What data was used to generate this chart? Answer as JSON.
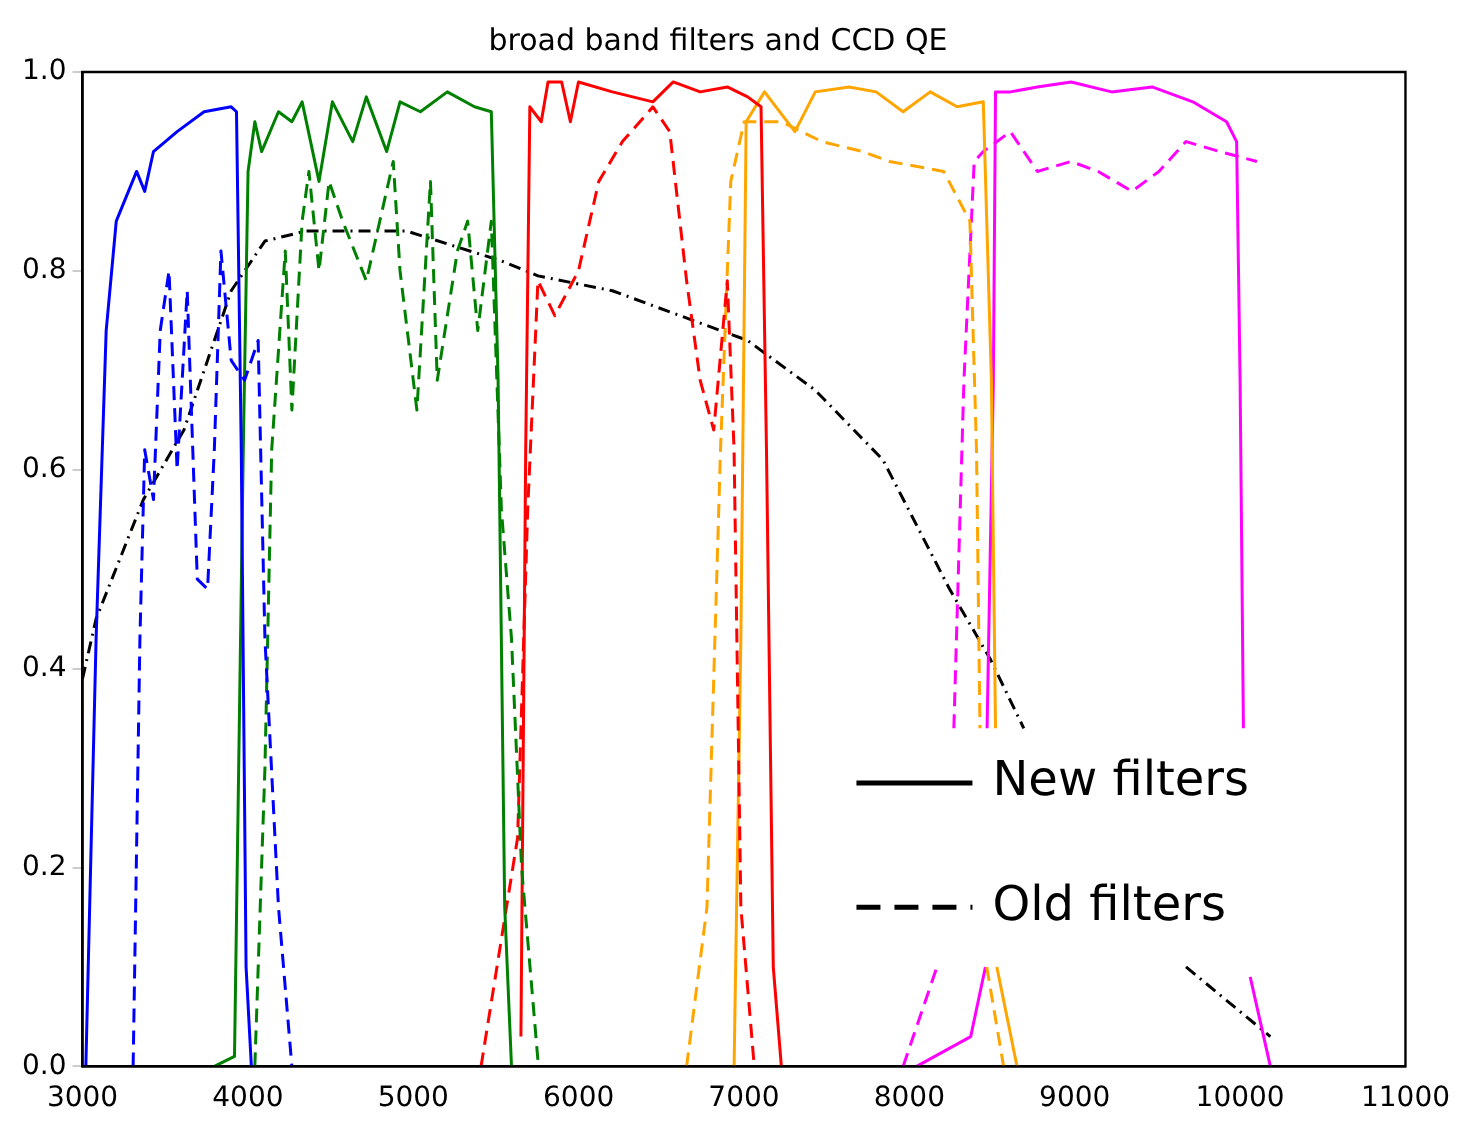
{
  "chart_data": {
    "type": "line",
    "title": "broad band filters and CCD QE",
    "xlim": [
      3000,
      11000
    ],
    "xticks": [
      3000,
      4000,
      5000,
      6000,
      7000,
      8000,
      9000,
      10000,
      11000
    ],
    "ylim": [
      0,
      1
    ],
    "yticks": [
      {
        "value": 0,
        "label": "0.0"
      },
      {
        "value": 0.2,
        "label": "0.2"
      },
      {
        "value": 0.4,
        "label": "0.4"
      },
      {
        "value": 0.6,
        "label": "0.6"
      },
      {
        "value": 0.8,
        "label": "0.8"
      },
      {
        "value": 1,
        "label": "1.0"
      }
    ],
    "grid": false,
    "annotations": [
      "New filters",
      "Old filters"
    ],
    "series": [
      {
        "color": "#0000ff",
        "line_style": "solid",
        "x": [
          3020,
          3082,
          3143,
          3204,
          3327,
          3376,
          3429,
          3572,
          3735,
          3899,
          3931,
          3960,
          3989,
          4021
        ],
        "values": [
          0,
          0.43,
          0.74,
          0.85,
          0.9,
          0.88,
          0.92,
          0.94,
          0.96,
          0.965,
          0.96,
          0.62,
          0.1,
          0
        ]
      },
      {
        "color": "#0000ff",
        "line_style": "dashed",
        "x": [
          3306,
          3347,
          3376,
          3429,
          3470,
          3523,
          3572,
          3633,
          3694,
          3756,
          3797,
          3837,
          3899,
          3980,
          4062,
          4103,
          4185,
          4266
        ],
        "values": [
          0,
          0.43,
          0.62,
          0.57,
          0.74,
          0.8,
          0.6,
          0.78,
          0.49,
          0.48,
          0.62,
          0.82,
          0.71,
          0.69,
          0.73,
          0.43,
          0.16,
          0
        ]
      },
      {
        "color": "#008000",
        "line_style": "solid",
        "x": [
          3797,
          3919,
          3972,
          4001,
          4042,
          4083,
          4185,
          4266,
          4328,
          4430,
          4511,
          4634,
          4716,
          4839,
          4920,
          5043,
          5206,
          5370,
          5472,
          5513,
          5553,
          5594
        ],
        "values": [
          0,
          0.01,
          0.62,
          0.9,
          0.95,
          0.92,
          0.96,
          0.95,
          0.97,
          0.89,
          0.97,
          0.93,
          0.975,
          0.92,
          0.97,
          0.96,
          0.98,
          0.965,
          0.96,
          0.69,
          0.16,
          0
        ]
      },
      {
        "color": "#008000",
        "line_style": "dashed",
        "x": [
          4042,
          4103,
          4144,
          4185,
          4226,
          4266,
          4328,
          4369,
          4430,
          4491,
          4573,
          4716,
          4879,
          4920,
          5022,
          5104,
          5145,
          5267,
          5329,
          5390,
          5472,
          5533,
          5594,
          5655,
          5757
        ],
        "values": [
          0,
          0.3,
          0.62,
          0.72,
          0.82,
          0.66,
          0.85,
          0.9,
          0.8,
          0.89,
          0.85,
          0.79,
          0.91,
          0.8,
          0.66,
          0.89,
          0.69,
          0.82,
          0.85,
          0.74,
          0.85,
          0.56,
          0.43,
          0.2,
          0
        ]
      },
      {
        "color": "#ff0000",
        "line_style": "solid",
        "x": [
          5651,
          5680,
          5705,
          5774,
          5815,
          5897,
          5950,
          5999,
          6204,
          6449,
          6572,
          6735,
          6899,
          7022,
          7103,
          7136,
          7177,
          7226
        ],
        "values": [
          0.03,
          0.62,
          0.965,
          0.95,
          0.99,
          0.99,
          0.95,
          0.99,
          0.98,
          0.97,
          0.99,
          0.98,
          0.985,
          0.975,
          0.965,
          0.62,
          0.1,
          0
        ]
      },
      {
        "color": "#ff0000",
        "line_style": "dashed",
        "x": [
          5410,
          5631,
          5692,
          5754,
          5856,
          5999,
          6122,
          6265,
          6449,
          6551,
          6653,
          6735,
          6817,
          6899,
          6940,
          6981,
          7062
        ],
        "values": [
          0,
          0.23,
          0.56,
          0.79,
          0.755,
          0.8,
          0.89,
          0.93,
          0.965,
          0.94,
          0.79,
          0.69,
          0.64,
          0.79,
          0.62,
          0.16,
          0
        ]
      },
      {
        "color": "#ffa500",
        "line_style": "solid",
        "x": [
          6940,
          6981,
          7013,
          7124,
          7308,
          7431,
          7635,
          7799,
          7962,
          8126,
          8289,
          8447,
          8496,
          8521,
          8525,
          8529,
          8651
        ],
        "values": [
          0,
          0.43,
          0.95,
          0.98,
          0.94,
          0.98,
          0.985,
          0.98,
          0.96,
          0.98,
          0.965,
          0.97,
          0.69,
          0.34,
          null,
          0.1,
          0
        ]
      },
      {
        "color": "#ffa500",
        "line_style": "dashed",
        "x": [
          6653,
          6776,
          6858,
          6920,
          7001,
          7226,
          7471,
          7717,
          7880,
          8208,
          8366,
          8406,
          8427,
          8447,
          8468,
          8570
        ],
        "values": [
          0,
          0.16,
          0.62,
          0.89,
          0.95,
          0.95,
          0.93,
          0.92,
          0.91,
          0.9,
          0.85,
          0.62,
          0.34,
          null,
          0.1,
          0
        ]
      },
      {
        "color": "#ff00ff",
        "line_style": "solid",
        "x": [
          8044,
          8371,
          8460,
          8464,
          8470,
          8508,
          8521,
          8611,
          8774,
          8978,
          9223,
          9468,
          9714,
          9918,
          9979,
          10000,
          10020,
          10040,
          10061,
          10183
        ],
        "values": [
          0,
          0.03,
          0.1,
          null,
          0.34,
          0.69,
          0.98,
          0.98,
          0.985,
          0.99,
          0.98,
          0.985,
          0.97,
          0.95,
          0.93,
          0.69,
          0.34,
          null,
          0.09,
          0
        ]
      },
      {
        "color": "#ff00ff",
        "line_style": "dashed",
        "x": [
          7962,
          8167,
          8218,
          8269,
          8330,
          8392,
          8447,
          8611,
          8774,
          8978,
          9142,
          9346,
          9509,
          9673,
          9877,
          10102
        ],
        "values": [
          0,
          0.1,
          null,
          0.34,
          0.69,
          0.91,
          0.92,
          0.94,
          0.9,
          0.91,
          0.9,
          0.88,
          0.9,
          0.93,
          0.92,
          0.91
        ]
      },
      {
        "color": "#000000",
        "line_style": "dotted",
        "x": [
          3000,
          3082,
          3368,
          3613,
          3899,
          4103,
          4348,
          4961,
          5533,
          5754,
          6204,
          6613,
          7022,
          7431,
          7840,
          8243,
          8488,
          8692,
          9200,
          9673,
          10183
        ],
        "values": [
          0.39,
          0.45,
          0.57,
          0.64,
          0.78,
          0.83,
          0.84,
          0.84,
          0.81,
          0.795,
          0.78,
          0.755,
          0.73,
          0.68,
          0.61,
          0.48,
          0.41,
          0.34,
          null,
          0.1,
          0.03
        ]
      }
    ]
  }
}
